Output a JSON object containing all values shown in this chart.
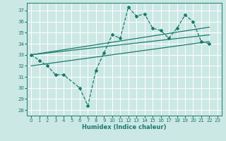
{
  "title": "",
  "xlabel": "Humidex (Indice chaleur)",
  "bg_color": "#cce8e4",
  "grid_color": "#ffffff",
  "line_color": "#1a7a6e",
  "xlim": [
    -0.5,
    23.5
  ],
  "ylim": [
    27.5,
    37.7
  ],
  "yticks": [
    28,
    29,
    30,
    31,
    32,
    33,
    34,
    35,
    36,
    37
  ],
  "xticks": [
    0,
    1,
    2,
    3,
    4,
    5,
    6,
    7,
    8,
    9,
    10,
    11,
    12,
    13,
    14,
    15,
    16,
    17,
    18,
    19,
    20,
    21,
    22,
    23
  ],
  "series1_x": [
    0,
    1,
    2,
    3,
    4,
    6,
    7,
    8,
    9,
    10,
    11,
    12,
    13,
    14,
    15,
    16,
    17,
    18,
    19,
    20,
    21,
    22
  ],
  "series1_y": [
    33.0,
    32.5,
    32.0,
    31.2,
    31.2,
    30.0,
    28.4,
    31.6,
    33.2,
    34.8,
    34.5,
    37.3,
    36.5,
    36.7,
    35.4,
    35.2,
    34.5,
    35.4,
    36.6,
    36.0,
    34.2,
    34.0
  ],
  "series2_x": [
    0,
    22
  ],
  "series2_y": [
    33.0,
    35.5
  ],
  "series3_x": [
    0,
    22
  ],
  "series3_y": [
    33.0,
    34.8
  ],
  "series4_x": [
    0,
    22
  ],
  "series4_y": [
    32.0,
    34.2
  ]
}
